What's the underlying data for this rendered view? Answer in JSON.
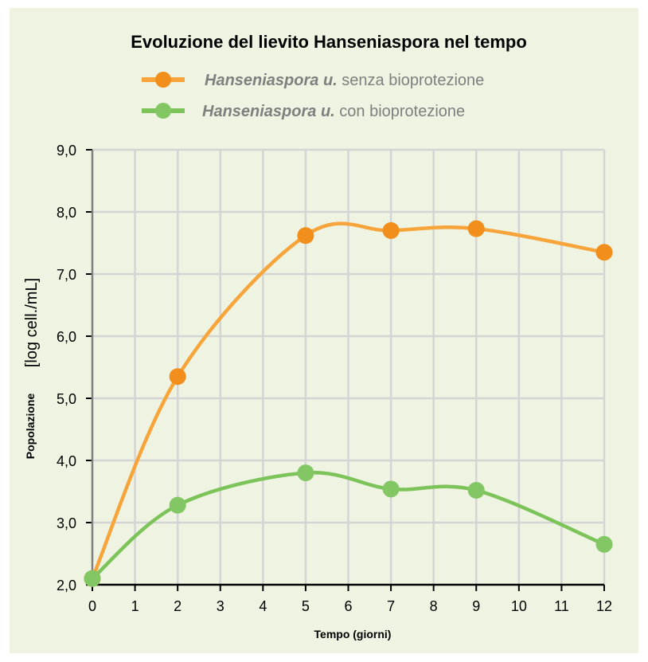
{
  "chart_data": {
    "type": "line",
    "title": "Evoluzione del lievito Hanseniaspora nel tempo",
    "xlabel": "Tempo (giorni)",
    "ylabel": "Popolazione",
    "ylabel_unit": "[log cell./mL]",
    "xlim": [
      0,
      12
    ],
    "ylim": [
      2.0,
      9.0
    ],
    "x_ticks": [
      "0",
      "1",
      "2",
      "3",
      "4",
      "5",
      "6",
      "7",
      "8",
      "9",
      "10",
      "11",
      "12"
    ],
    "y_ticks": [
      "2,0",
      "3,0",
      "4,0",
      "5,0",
      "6,0",
      "7,0",
      "8,0",
      "9,0"
    ],
    "grid": true,
    "legend_position": "top",
    "series": [
      {
        "name_italic": "Hanseniaspora u.",
        "name_rest": " senza bioprotezione",
        "color": "#f7a43a",
        "marker_color": "#f28e1c",
        "x": [
          0,
          2,
          5,
          7,
          9,
          12
        ],
        "y": [
          2.1,
          5.35,
          7.62,
          7.7,
          7.73,
          7.35
        ]
      },
      {
        "name_italic": "Hanseniaspora u.",
        "name_rest": " con bioprotezione",
        "color": "#7cc35a",
        "marker_color": "#82c763",
        "x": [
          0,
          2,
          5,
          7,
          9,
          12
        ],
        "y": [
          2.1,
          3.28,
          3.8,
          3.54,
          3.52,
          2.65
        ]
      }
    ]
  }
}
